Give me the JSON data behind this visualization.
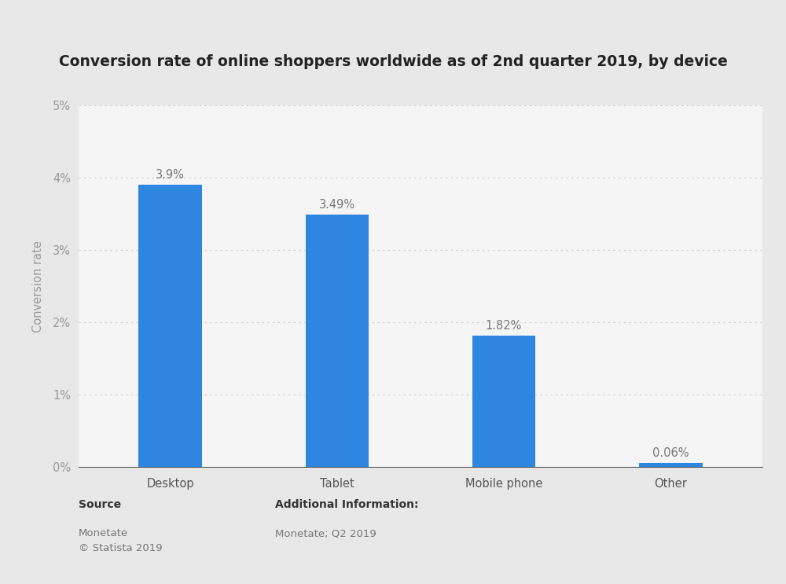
{
  "title": "Conversion rate of online shoppers worldwide as of 2nd quarter 2019, by device",
  "categories": [
    "Desktop",
    "Tablet",
    "Mobile phone",
    "Other"
  ],
  "values": [
    3.9,
    3.49,
    1.82,
    0.06
  ],
  "labels": [
    "3.9%",
    "3.49%",
    "1.82%",
    "0.06%"
  ],
  "bar_color": "#2f86e0",
  "ylabel": "Conversion rate",
  "ylim": [
    0,
    5
  ],
  "yticks": [
    0,
    1,
    2,
    3,
    4,
    5
  ],
  "ytick_labels": [
    "0%",
    "1%",
    "2%",
    "3%",
    "4%",
    "5%"
  ],
  "outer_background_color": "#e8e8e8",
  "plot_background_color": "#f5f5f5",
  "grid_color": "#cccccc",
  "source_label": "Source",
  "source_text": "Monetate\n© Statista 2019",
  "additional_label": "Additional Information:",
  "additional_text": "Monetate; Q2 2019",
  "title_fontsize": 13.5,
  "label_fontsize": 10.5,
  "tick_fontsize": 10.5,
  "axis_label_fontsize": 10.5,
  "footer_bold_fontsize": 10,
  "footer_text_fontsize": 9.5,
  "bar_width": 0.38
}
